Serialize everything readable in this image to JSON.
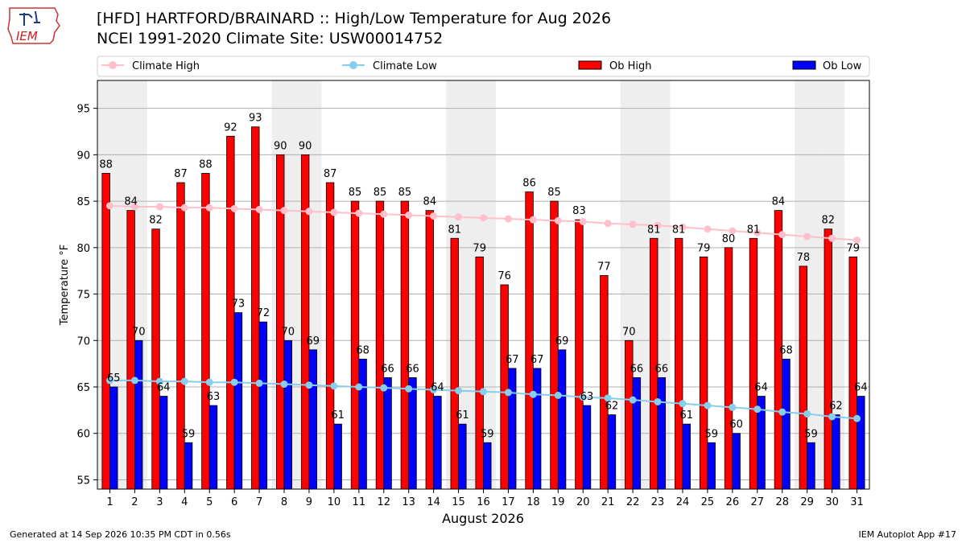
{
  "header": {
    "logo_text": "IEM",
    "title_line1": "[HFD] HARTFORD/BRAINARD :: High/Low Temperature for Aug 2026",
    "title_line2": "NCEI 1991-2020 Climate Site: USW00014752"
  },
  "footer": {
    "left": "Generated at 14 Sep 2026 10:35 PM CDT in 0.56s",
    "right": "IEM Autoplot App #17"
  },
  "colors": {
    "ob_high": "#ff0000",
    "ob_low": "#0000ff",
    "climate_high": "#ffc0cb",
    "climate_low": "#87ceeb",
    "weekend_shade": "#eeeeee",
    "grid": "#b0b0b0"
  },
  "chart_data": {
    "type": "bar",
    "xlabel": "August 2026",
    "ylabel": "Temperature °F",
    "ylim": [
      54,
      98
    ],
    "yticks": [
      55,
      60,
      65,
      70,
      75,
      80,
      85,
      90,
      95
    ],
    "grid": "horizontal",
    "legend_position": "top",
    "shaded_days": [
      1,
      2,
      8,
      9,
      15,
      16,
      22,
      23,
      29,
      30
    ],
    "x": [
      1,
      2,
      3,
      4,
      5,
      6,
      7,
      8,
      9,
      10,
      11,
      12,
      13,
      14,
      15,
      16,
      17,
      18,
      19,
      20,
      21,
      22,
      23,
      24,
      25,
      26,
      27,
      28,
      29,
      30,
      31
    ],
    "series": [
      {
        "name": "Climate High",
        "kind": "line",
        "values": [
          84.5,
          84.4,
          84.4,
          84.3,
          84.3,
          84.2,
          84.1,
          84.0,
          83.9,
          83.8,
          83.7,
          83.6,
          83.5,
          83.4,
          83.3,
          83.2,
          83.1,
          83.0,
          82.9,
          82.8,
          82.6,
          82.5,
          82.4,
          82.2,
          82.0,
          81.8,
          81.6,
          81.4,
          81.2,
          81.0,
          80.8
        ]
      },
      {
        "name": "Climate Low",
        "kind": "line",
        "values": [
          65.7,
          65.7,
          65.6,
          65.6,
          65.5,
          65.5,
          65.4,
          65.3,
          65.2,
          65.1,
          65.0,
          64.9,
          64.8,
          64.7,
          64.6,
          64.5,
          64.4,
          64.2,
          64.1,
          63.9,
          63.8,
          63.6,
          63.4,
          63.2,
          63.0,
          62.8,
          62.6,
          62.3,
          62.1,
          61.8,
          61.6
        ]
      },
      {
        "name": "Ob High",
        "kind": "bar",
        "values": [
          88,
          84,
          82,
          87,
          88,
          92,
          93,
          90,
          90,
          87,
          85,
          85,
          85,
          84,
          81,
          79,
          76,
          86,
          85,
          83,
          77,
          70,
          81,
          81,
          79,
          80,
          81,
          84,
          78,
          82,
          79
        ]
      },
      {
        "name": "Ob Low",
        "kind": "bar",
        "values": [
          65,
          70,
          64,
          59,
          63,
          73,
          72,
          70,
          69,
          61,
          68,
          66,
          66,
          64,
          61,
          59,
          67,
          67,
          69,
          63,
          62,
          66,
          66,
          61,
          59,
          60,
          64,
          68,
          59,
          62,
          64
        ]
      }
    ]
  }
}
